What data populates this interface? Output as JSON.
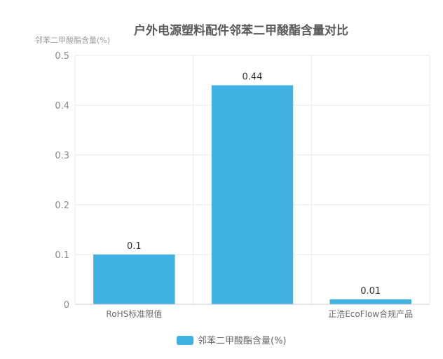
{
  "chart_data": {
    "type": "bar",
    "title": "户外电源塑料配件邻苯二甲酸酯含量对比",
    "ylabel": "邻苯二甲酸酯含量(%)",
    "categories": [
      "RoHS标准限值",
      "",
      "正浩EcoFlow合规产品"
    ],
    "series": [
      {
        "name": "邻苯二甲酸酯含量(%)",
        "values": [
          0.1,
          0.44,
          0.01
        ]
      }
    ],
    "data_labels": [
      "0.1",
      "0.44",
      "0.01"
    ],
    "ylim": [
      0,
      0.5
    ],
    "yticks": [
      "0",
      "0.1",
      "0.2",
      "0.3",
      "0.4",
      "0.5"
    ],
    "grid": true,
    "legend_position": "bottom",
    "colors": {
      "bar": "#3fb1e3",
      "grid": "#e9e9e9",
      "axis": "#cccccc"
    }
  }
}
